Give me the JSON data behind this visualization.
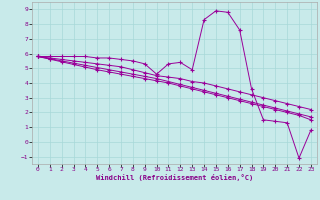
{
  "xlabel": "Windchill (Refroidissement éolien,°C)",
  "background_color": "#c8eaea",
  "grid_color": "#a8d8d8",
  "line_color": "#990099",
  "x_data": [
    0,
    1,
    2,
    3,
    4,
    5,
    6,
    7,
    8,
    9,
    10,
    11,
    12,
    13,
    14,
    15,
    16,
    17,
    18,
    19,
    20,
    21,
    22,
    23
  ],
  "line1": [
    5.8,
    5.8,
    5.8,
    5.8,
    5.8,
    5.7,
    5.7,
    5.6,
    5.5,
    5.3,
    4.6,
    5.3,
    5.4,
    4.9,
    8.3,
    8.9,
    8.8,
    7.6,
    3.6,
    1.5,
    1.4,
    1.3,
    -1.1,
    0.8
  ],
  "line2": [
    5.8,
    5.7,
    5.6,
    5.5,
    5.4,
    5.3,
    5.2,
    5.1,
    4.9,
    4.7,
    4.5,
    4.4,
    4.3,
    4.1,
    4.0,
    3.8,
    3.6,
    3.4,
    3.2,
    3.0,
    2.8,
    2.6,
    2.4,
    2.2
  ],
  "line3": [
    5.8,
    5.65,
    5.5,
    5.35,
    5.2,
    5.05,
    4.9,
    4.75,
    4.6,
    4.45,
    4.3,
    4.1,
    3.9,
    3.7,
    3.5,
    3.3,
    3.1,
    2.9,
    2.7,
    2.5,
    2.3,
    2.1,
    1.9,
    1.7
  ],
  "line4": [
    5.8,
    5.62,
    5.44,
    5.26,
    5.08,
    4.9,
    4.75,
    4.6,
    4.45,
    4.3,
    4.15,
    4.0,
    3.8,
    3.6,
    3.4,
    3.2,
    3.0,
    2.8,
    2.6,
    2.4,
    2.2,
    2.0,
    1.8,
    1.5
  ],
  "ylim": [
    -1.5,
    9.5
  ],
  "xlim": [
    -0.5,
    23.5
  ],
  "yticks": [
    -1,
    0,
    1,
    2,
    3,
    4,
    5,
    6,
    7,
    8,
    9
  ],
  "xticks": [
    0,
    1,
    2,
    3,
    4,
    5,
    6,
    7,
    8,
    9,
    10,
    11,
    12,
    13,
    14,
    15,
    16,
    17,
    18,
    19,
    20,
    21,
    22,
    23
  ]
}
